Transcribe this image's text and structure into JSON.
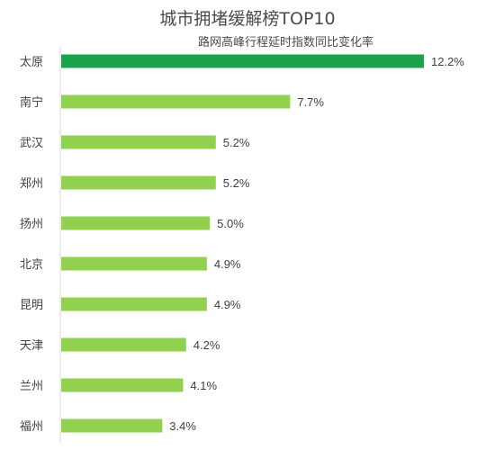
{
  "chart_data": {
    "type": "bar",
    "orientation": "horizontal",
    "title": "城市拥堵缓解榜TOP10",
    "subtitle": "路网高峰行程延时指数同比变化率",
    "categories": [
      "太原",
      "南宁",
      "武汉",
      "郑州",
      "扬州",
      "北京",
      "昆明",
      "天津",
      "兰州",
      "福州"
    ],
    "values": [
      12.2,
      7.7,
      5.2,
      5.2,
      5.0,
      4.9,
      4.9,
      4.2,
      4.1,
      3.4
    ],
    "value_labels": [
      "12.2%",
      "7.7%",
      "5.2%",
      "5.2%",
      "5.0%",
      "4.9%",
      "4.9%",
      "4.2%",
      "4.1%",
      "3.4%"
    ],
    "xlim": [
      0,
      12.2
    ],
    "grid": false,
    "colors": {
      "highlight": "#1aa34a",
      "bar": "#92d050",
      "axis": "#d9d9d9",
      "text": "#404040"
    }
  }
}
